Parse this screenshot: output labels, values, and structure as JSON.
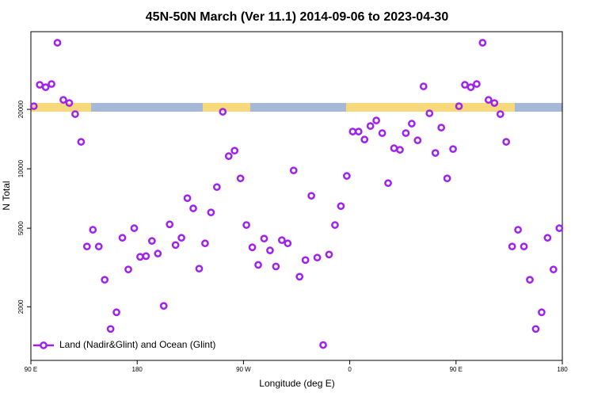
{
  "chart_data": {
    "type": "scatter",
    "title": "45N-50N March (Ver 11.1)   2014-09-06 to 2023-04-30",
    "x_label": "Longitude (deg E)",
    "y_label": "N Total",
    "log_y": true,
    "legend": "bottom-left",
    "xlim": [
      90,
      540
    ],
    "ylim": [
      1070,
      49500
    ],
    "xticks": [
      {
        "value": 90,
        "label": "90 E"
      },
      {
        "value": 180,
        "label": "180"
      },
      {
        "value": 270,
        "label": "90 W"
      },
      {
        "value": 360,
        "label": "0"
      },
      {
        "value": 450,
        "label": "90 E"
      },
      {
        "value": 540,
        "label": "180"
      }
    ],
    "yticks": [
      2000,
      5000,
      10000,
      20000
    ],
    "series": [
      {
        "name": "Land (Nadir&Glint) and Ocean (Glint)",
        "color": "#a020f0",
        "x": [
          92.5,
          97.5,
          102.5,
          107.5,
          112.5,
          117.5,
          122.5,
          127.5,
          132.5,
          137.5,
          142.5,
          147.5,
          152.5,
          157.5,
          162.5,
          167.5,
          172.5,
          177.5,
          182.5,
          187.5,
          192.5,
          197.5,
          202.5,
          207.5,
          212.5,
          217.5,
          222.5,
          227.5,
          232.5,
          237.5,
          242.5,
          247.5,
          252.5,
          257.5,
          262.5,
          267.5,
          272.5,
          277.5,
          282.5,
          287.5,
          292.5,
          297.5,
          302.5,
          307.5,
          312.5,
          317.5,
          322.5,
          327.5,
          332.5,
          337.5,
          342.5,
          347.5,
          352.5,
          357.5,
          362.5,
          367.5,
          372.5,
          377.5,
          382.5,
          387.5,
          392.5,
          397.5,
          402.5,
          407.5,
          412.5,
          417.5,
          422.5,
          427.5,
          432.5,
          437.5,
          442.5,
          447.5,
          452.5,
          457.5,
          462.5,
          467.5,
          472.5,
          477.5,
          482.5,
          487.5,
          492.5,
          497.5,
          502.5,
          507.5,
          512.5,
          517.5,
          522.5,
          527.5,
          532.5,
          537.5
        ],
        "values": [
          20760,
          26640,
          25900,
          26880,
          43500,
          22340,
          21540,
          18920,
          13690,
          4040,
          4910,
          4040,
          2740,
          1544,
          1875,
          4470,
          3090,
          5000,
          3580,
          3610,
          4310,
          3720,
          2020,
          5230,
          4110,
          4470,
          7100,
          6300,
          3120,
          4190,
          6010,
          8080,
          19450,
          11590,
          12360,
          8940,
          5190,
          4000,
          3260,
          4430,
          3860,
          3200,
          4350,
          4190,
          9810,
          2840,
          3450,
          7300,
          3550,
          1280,
          3680,
          5190,
          6470,
          9200,
          15440,
          15440,
          14070,
          16470,
          17570,
          15160,
          8460,
          12710,
          12480,
          15160,
          16930,
          13940,
          26150,
          19100,
          12030,
          16170,
          8940,
          12590,
          20760,
          26640,
          25900,
          26880,
          43500,
          22340,
          21540,
          18920,
          13690,
          4040,
          4910,
          4040,
          2740,
          1544,
          1875,
          4470,
          3090,
          5000
        ]
      }
    ]
  }
}
